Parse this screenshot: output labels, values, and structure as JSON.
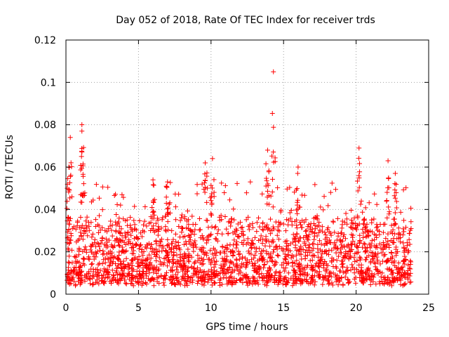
{
  "chart_data": {
    "type": "scatter",
    "title": "Day 052 of 2018, Rate Of TEC Index for receiver trds",
    "xlabel": "GPS time / hours",
    "ylabel": "ROTI / TECUs",
    "xlim": [
      0,
      25
    ],
    "ylim": [
      0,
      0.12
    ],
    "xticks": [
      0,
      5,
      10,
      15,
      20,
      25
    ],
    "yticks": [
      0,
      0.02,
      0.04,
      0.06,
      0.08,
      0.1,
      0.12
    ],
    "xtick_labels": [
      "0",
      "5",
      "10",
      "15",
      "20",
      "25"
    ],
    "ytick_labels": [
      "0",
      "0.02",
      "0.04",
      "0.06",
      "0.08",
      "0.1",
      "0.12"
    ],
    "grid": true,
    "marker": "+",
    "marker_color": "#ff0000",
    "series": [
      {
        "name": "ROTI",
        "x_range": [
          0,
          23.8
        ],
        "typical_range": [
          0.005,
          0.035
        ],
        "notable_points": [
          {
            "x": 0.2,
            "y": 0.06
          },
          {
            "x": 0.3,
            "y": 0.074
          },
          {
            "x": 1.1,
            "y": 0.08
          },
          {
            "x": 1.1,
            "y": 0.077
          },
          {
            "x": 6.0,
            "y": 0.054
          },
          {
            "x": 7.0,
            "y": 0.053
          },
          {
            "x": 9.6,
            "y": 0.062
          },
          {
            "x": 10.1,
            "y": 0.064
          },
          {
            "x": 13.9,
            "y": 0.068
          },
          {
            "x": 14.3,
            "y": 0.105
          },
          {
            "x": 16.0,
            "y": 0.06
          },
          {
            "x": 20.2,
            "y": 0.069
          },
          {
            "x": 22.2,
            "y": 0.063
          },
          {
            "x": 22.7,
            "y": 0.057
          }
        ]
      }
    ]
  }
}
